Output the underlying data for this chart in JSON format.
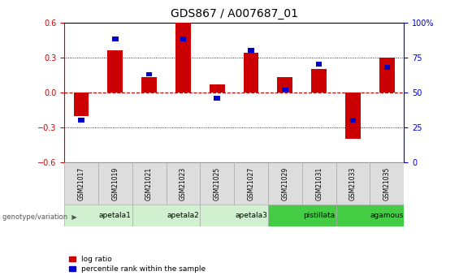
{
  "title": "GDS867 / A007687_01",
  "samples": [
    "GSM21017",
    "GSM21019",
    "GSM21021",
    "GSM21023",
    "GSM21025",
    "GSM21027",
    "GSM21029",
    "GSM21031",
    "GSM21033",
    "GSM21035"
  ],
  "log_ratio": [
    -0.2,
    0.36,
    0.13,
    0.6,
    0.07,
    0.34,
    0.13,
    0.2,
    -0.4,
    0.3
  ],
  "percentile_rank": [
    30,
    88,
    63,
    88,
    46,
    80,
    52,
    70,
    30,
    68
  ],
  "ylim_left": [
    -0.6,
    0.6
  ],
  "ylim_right": [
    0,
    100
  ],
  "yticks_left": [
    -0.6,
    -0.3,
    0.0,
    0.3,
    0.6
  ],
  "yticks_right": [
    0,
    25,
    50,
    75,
    100
  ],
  "groups": [
    {
      "label": "apetala1",
      "start": 0,
      "end": 2,
      "color": "#d0f0d0"
    },
    {
      "label": "apetala2",
      "start": 2,
      "end": 4,
      "color": "#d0f0d0"
    },
    {
      "label": "apetala3",
      "start": 4,
      "end": 6,
      "color": "#d0f0d0"
    },
    {
      "label": "pistillata",
      "start": 6,
      "end": 8,
      "color": "#44cc44"
    },
    {
      "label": "agamous",
      "start": 8,
      "end": 10,
      "color": "#44cc44"
    }
  ],
  "bar_color_red": "#cc0000",
  "bar_color_blue": "#0000cc",
  "zero_line_color": "#cc0000",
  "grid_color": "#000000",
  "bar_width": 0.45,
  "blue_bar_width": 0.18,
  "blue_bar_height": 0.04,
  "legend_label_red": "log ratio",
  "legend_label_blue": "percentile rank within the sample",
  "genotype_label": "genotype/variation",
  "title_fontsize": 10,
  "tick_fontsize": 7,
  "label_fontsize": 7
}
